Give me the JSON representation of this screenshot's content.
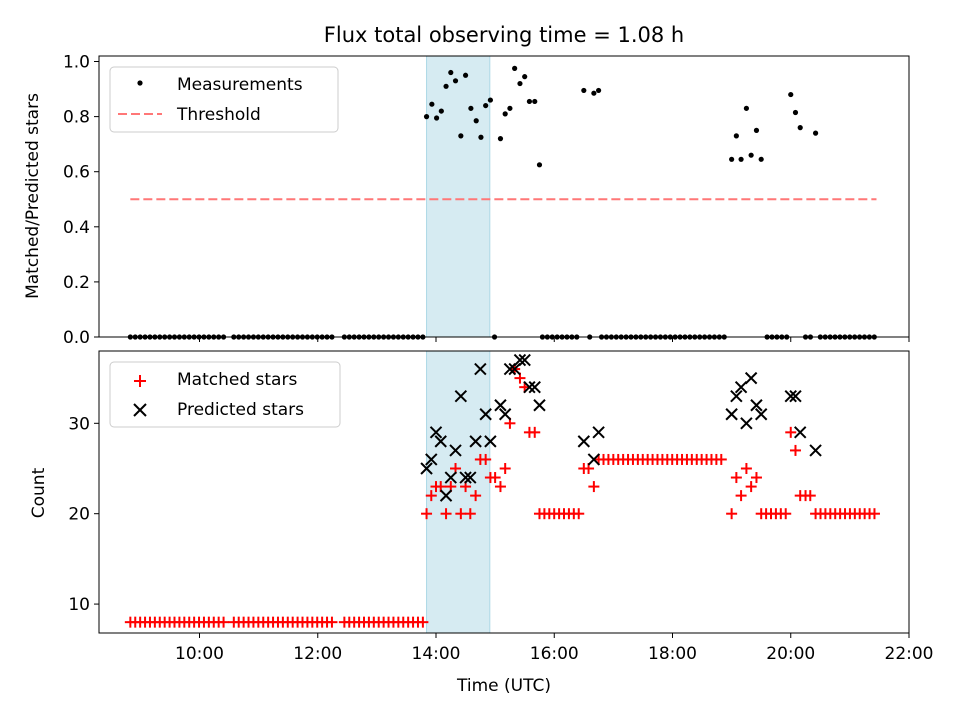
{
  "chart_data": [
    {
      "type": "scatter",
      "title": "Flux total observing time = 1.08 h",
      "xlabel": "",
      "ylabel": "Matched/Predicted stars",
      "xlim": [
        8.3,
        22.0
      ],
      "ylim": [
        0.0,
        1.02
      ],
      "xticks": [
        10,
        12,
        14,
        16,
        18,
        20,
        22
      ],
      "xtick_labels": [
        "",
        "",
        "",
        "",
        "",
        "",
        ""
      ],
      "yticks": [
        0.0,
        0.2,
        0.4,
        0.6,
        0.8,
        1.0
      ],
      "ytick_labels": [
        "0.0",
        "0.2",
        "0.4",
        "0.6",
        "0.8",
        "1.0"
      ],
      "highlight_span": [
        13.84,
        14.91
      ],
      "legend": {
        "position": "upper-left",
        "entries": [
          "Measurements",
          "Threshold"
        ]
      },
      "threshold": {
        "name": "Threshold",
        "value": 0.5,
        "x_range": [
          8.83,
          21.45
        ],
        "color": "#ff7777"
      },
      "series": [
        {
          "name": "Measurements",
          "color": "#000000",
          "marker": "dot",
          "points": [
            [
              13.84,
              0.8
            ],
            [
              13.93,
              0.845
            ],
            [
              14.01,
              0.795
            ],
            [
              14.09,
              0.82
            ],
            [
              14.17,
              0.91
            ],
            [
              14.25,
              0.96
            ],
            [
              14.33,
              0.93
            ],
            [
              14.42,
              0.73
            ],
            [
              14.5,
              0.95
            ],
            [
              14.59,
              0.83
            ],
            [
              14.68,
              0.785
            ],
            [
              14.76,
              0.725
            ],
            [
              14.84,
              0.84
            ],
            [
              14.92,
              0.86
            ],
            [
              15.09,
              0.72
            ],
            [
              15.17,
              0.81
            ],
            [
              15.25,
              0.83
            ],
            [
              15.33,
              0.975
            ],
            [
              15.42,
              0.92
            ],
            [
              15.5,
              0.945
            ],
            [
              15.58,
              0.855
            ],
            [
              15.67,
              0.855
            ],
            [
              15.75,
              0.625
            ],
            [
              16.5,
              0.895
            ],
            [
              16.67,
              0.885
            ],
            [
              16.75,
              0.895
            ],
            [
              19.0,
              0.645
            ],
            [
              19.08,
              0.73
            ],
            [
              19.16,
              0.645
            ],
            [
              19.25,
              0.83
            ],
            [
              19.33,
              0.66
            ],
            [
              19.42,
              0.75
            ],
            [
              19.5,
              0.645
            ],
            [
              20.0,
              0.88
            ],
            [
              20.08,
              0.815
            ],
            [
              20.16,
              0.76
            ],
            [
              20.42,
              0.74
            ]
          ],
          "zero_ranges": [
            [
              8.83,
              10.45
            ],
            [
              10.58,
              12.28
            ],
            [
              12.45,
              13.8
            ],
            [
              14.99,
              14.99
            ],
            [
              15.8,
              16.45
            ],
            [
              16.6,
              16.6
            ],
            [
              16.8,
              18.95
            ],
            [
              19.6,
              19.95
            ],
            [
              20.25,
              20.35
            ],
            [
              20.5,
              21.45
            ]
          ],
          "zero_step": 0.083
        }
      ]
    },
    {
      "type": "scatter",
      "title": "",
      "xlabel": "Time (UTC)",
      "ylabel": "Count",
      "xlim": [
        8.3,
        22.0
      ],
      "ylim": [
        6.8,
        38.0
      ],
      "xticks": [
        10,
        12,
        14,
        16,
        18,
        20,
        22
      ],
      "xtick_labels": [
        "10:00",
        "12:00",
        "14:00",
        "16:00",
        "18:00",
        "20:00",
        "22:00"
      ],
      "yticks": [
        10,
        20,
        30
      ],
      "ytick_labels": [
        "10",
        "20",
        "30"
      ],
      "highlight_span": [
        13.84,
        14.91
      ],
      "legend": {
        "position": "upper-left",
        "entries": [
          "Matched stars",
          "Predicted stars"
        ]
      },
      "series": [
        {
          "name": "Matched stars",
          "color": "#ff0000",
          "marker": "plus",
          "points": [
            [
              13.84,
              20
            ],
            [
              13.92,
              22
            ],
            [
              14.0,
              23
            ],
            [
              14.08,
              23
            ],
            [
              14.17,
              20
            ],
            [
              14.25,
              23
            ],
            [
              14.33,
              25
            ],
            [
              14.42,
              20
            ],
            [
              14.5,
              23
            ],
            [
              14.58,
              20
            ],
            [
              14.67,
              22
            ],
            [
              14.75,
              26
            ],
            [
              14.84,
              26
            ],
            [
              14.92,
              24
            ],
            [
              15.0,
              24
            ],
            [
              15.09,
              23
            ],
            [
              15.17,
              25
            ],
            [
              15.25,
              30
            ],
            [
              15.33,
              36
            ],
            [
              15.42,
              35
            ],
            [
              15.5,
              34
            ],
            [
              15.58,
              29
            ],
            [
              15.67,
              29
            ],
            [
              16.5,
              25
            ],
            [
              16.58,
              25
            ],
            [
              16.67,
              23
            ],
            [
              19.0,
              20
            ],
            [
              19.08,
              24
            ],
            [
              19.16,
              22
            ],
            [
              19.25,
              25
            ],
            [
              19.33,
              23
            ],
            [
              19.42,
              24
            ],
            [
              20.0,
              29
            ],
            [
              20.08,
              27
            ],
            [
              20.16,
              22
            ],
            [
              20.25,
              22
            ],
            [
              20.33,
              22
            ]
          ],
          "flat_ranges": [
            {
              "from": 8.83,
              "to": 10.45,
              "value": 8
            },
            {
              "from": 10.58,
              "to": 12.28,
              "value": 8
            },
            {
              "from": 12.45,
              "to": 13.8,
              "value": 8
            },
            {
              "from": 15.75,
              "to": 16.42,
              "value": 20
            },
            {
              "from": 16.75,
              "to": 18.9,
              "value": 26
            },
            {
              "from": 19.5,
              "to": 19.95,
              "value": 20
            },
            {
              "from": 20.42,
              "to": 21.42,
              "value": 20
            }
          ],
          "flat_step": 0.083
        },
        {
          "name": "Predicted stars",
          "color": "#000000",
          "marker": "x",
          "points": [
            [
              13.84,
              25
            ],
            [
              13.92,
              26
            ],
            [
              14.0,
              29
            ],
            [
              14.08,
              28
            ],
            [
              14.17,
              22
            ],
            [
              14.25,
              24
            ],
            [
              14.33,
              27
            ],
            [
              14.42,
              33
            ],
            [
              14.5,
              24
            ],
            [
              14.58,
              24
            ],
            [
              14.67,
              28
            ],
            [
              14.75,
              36
            ],
            [
              14.84,
              31
            ],
            [
              14.92,
              28
            ],
            [
              15.09,
              32
            ],
            [
              15.17,
              31
            ],
            [
              15.25,
              36
            ],
            [
              15.33,
              36
            ],
            [
              15.42,
              37
            ],
            [
              15.5,
              37
            ],
            [
              15.58,
              34
            ],
            [
              15.67,
              34
            ],
            [
              15.75,
              32
            ],
            [
              16.5,
              28
            ],
            [
              16.67,
              26
            ],
            [
              16.75,
              29
            ],
            [
              19.0,
              31
            ],
            [
              19.08,
              33
            ],
            [
              19.16,
              34
            ],
            [
              19.25,
              30
            ],
            [
              19.33,
              35
            ],
            [
              19.42,
              32
            ],
            [
              19.5,
              31
            ],
            [
              20.0,
              33
            ],
            [
              20.08,
              33
            ],
            [
              20.16,
              29
            ],
            [
              20.42,
              27
            ]
          ]
        }
      ]
    }
  ]
}
